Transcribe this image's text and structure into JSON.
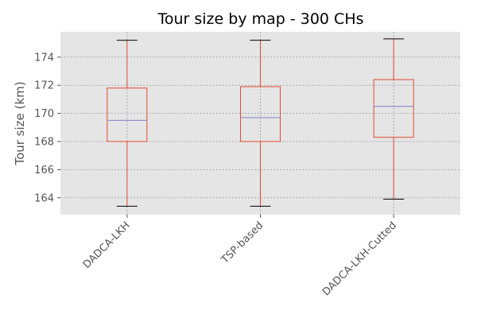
{
  "chart_data": {
    "type": "box",
    "title": "Tour size by map - 300 CHs",
    "xlabel": "",
    "ylabel": "Tour size (km)",
    "ylim": [
      162.8,
      175.8
    ],
    "yticks": [
      164,
      166,
      168,
      170,
      172,
      174
    ],
    "grid": true,
    "categories": [
      "DADCA-LKH",
      "TSP-based",
      "DADCA-LKH-Cutted"
    ],
    "boxes": [
      {
        "whisker_low": 163.4,
        "q1": 168.0,
        "median": 169.5,
        "q3": 171.8,
        "whisker_high": 175.2
      },
      {
        "whisker_low": 163.4,
        "q1": 168.0,
        "median": 169.7,
        "q3": 171.9,
        "whisker_high": 175.2
      },
      {
        "whisker_low": 163.9,
        "q1": 168.3,
        "median": 170.5,
        "q3": 172.4,
        "whisker_high": 175.3
      }
    ],
    "colors": {
      "box": "#E24A33",
      "median": "#8E8ECC",
      "whisker_cap": "#000000",
      "background": "#E5E5E5",
      "grid": "#9A9A9A"
    }
  }
}
